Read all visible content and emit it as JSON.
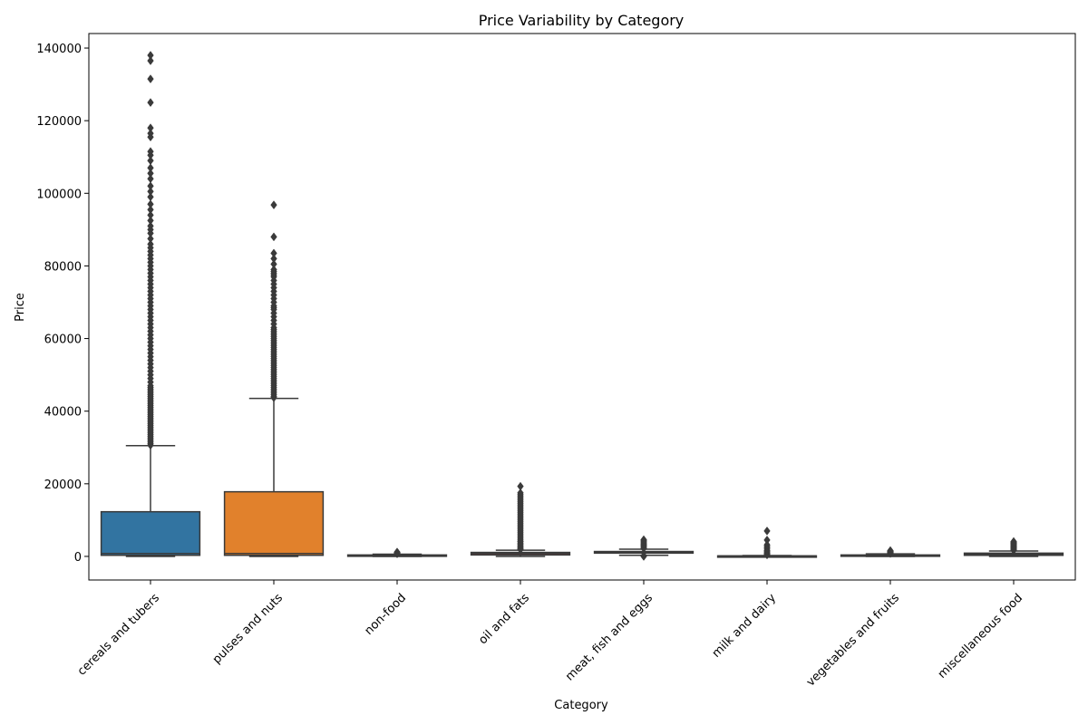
{
  "chart_data": {
    "type": "box",
    "title": "Price Variability by Category",
    "xlabel": "Category",
    "ylabel": "Price",
    "ylim": [
      -6500,
      144000
    ],
    "yticks": [
      0,
      20000,
      40000,
      60000,
      80000,
      100000,
      120000,
      140000
    ],
    "grid": false,
    "legend": "none",
    "box_edge_color": "#3a3a3a",
    "categories": [
      {
        "name": "cereals and tubers",
        "color": "#3274a1",
        "whisker_low": 0,
        "q1": 300,
        "median": 800,
        "q3": 12300,
        "whisker_high": 30500,
        "outliers": [
          30600,
          31000,
          31500,
          32000,
          32500,
          33000,
          33500,
          34000,
          34500,
          35000,
          35500,
          36000,
          36500,
          37000,
          37500,
          38000,
          38500,
          39000,
          39500,
          40000,
          40500,
          41000,
          41500,
          42000,
          42500,
          43000,
          43500,
          44000,
          44500,
          45000,
          45500,
          46000,
          46500,
          47000,
          48000,
          49000,
          50000,
          51000,
          52000,
          53000,
          54000,
          55000,
          56000,
          57000,
          58000,
          59000,
          60000,
          61000,
          62000,
          63000,
          64000,
          65000,
          66000,
          67000,
          68000,
          69000,
          70000,
          71000,
          72000,
          73000,
          74000,
          75000,
          76000,
          77000,
          78000,
          79000,
          80000,
          81000,
          82000,
          83000,
          84000,
          85000,
          86000,
          87500,
          89000,
          90000,
          91000,
          92500,
          94000,
          95500,
          97000,
          99000,
          100500,
          102000,
          104000,
          105500,
          107000,
          109000,
          110500,
          111500,
          115500,
          116500,
          118000,
          125000,
          131500,
          136500,
          138000
        ]
      },
      {
        "name": "pulses and nuts",
        "color": "#e1812c",
        "whisker_low": 0,
        "q1": 300,
        "median": 800,
        "q3": 17800,
        "whisker_high": 43500,
        "outliers": [
          43700,
          44000,
          44500,
          45000,
          45500,
          46000,
          46500,
          47000,
          47500,
          48000,
          48500,
          49000,
          49500,
          50000,
          50500,
          51000,
          51500,
          52000,
          52500,
          53000,
          53500,
          54000,
          54500,
          55000,
          55500,
          56000,
          56500,
          57000,
          57500,
          58000,
          58500,
          59000,
          59500,
          60000,
          60500,
          61000,
          61500,
          62000,
          62500,
          63000,
          64000,
          65000,
          66000,
          67000,
          68000,
          68500,
          69000,
          70000,
          71000,
          72000,
          73000,
          74000,
          75000,
          76000,
          77000,
          77500,
          78000,
          78500,
          79000,
          80500,
          82000,
          83500,
          88000,
          96800
        ]
      },
      {
        "name": "non-food",
        "color": "#3a923a",
        "whisker_low": 0,
        "q1": 150,
        "median": 250,
        "q3": 400,
        "whisker_high": 600,
        "outliers": [
          700,
          800,
          900,
          1000,
          1100,
          1200
        ]
      },
      {
        "name": "oil and fats",
        "color": "#c03d3e",
        "whisker_low": 0,
        "q1": 400,
        "median": 800,
        "q3": 1100,
        "whisker_high": 1700,
        "outliers": [
          1900,
          2200,
          2500,
          2900,
          3300,
          3700,
          4100,
          4500,
          5000,
          5500,
          6000,
          6500,
          7000,
          7500,
          8000,
          8500,
          9000,
          9500,
          10000,
          10500,
          11000,
          11500,
          12000,
          12500,
          13000,
          13500,
          14000,
          14500,
          15000,
          15500,
          16000,
          16500,
          17000,
          17500,
          19300
        ]
      },
      {
        "name": "meat, fish and eggs",
        "color": "#9372b2",
        "whisker_low": 300,
        "q1": 900,
        "median": 1150,
        "q3": 1350,
        "whisker_high": 2000,
        "outliers": [
          0,
          100,
          200,
          2200,
          2500,
          2800,
          3100,
          3400,
          3700,
          4000,
          4300,
          4600
        ]
      },
      {
        "name": "milk and dairy",
        "color": "#845b53",
        "whisker_low": 0,
        "q1": 50,
        "median": 100,
        "q3": 150,
        "whisker_high": 250,
        "outliers": [
          400,
          600,
          800,
          1000,
          1300,
          1600,
          2000,
          2400,
          2800,
          3200,
          4500,
          7000
        ]
      },
      {
        "name": "vegetables and fruits",
        "color": "#d684bd",
        "whisker_low": 0,
        "q1": 100,
        "median": 250,
        "q3": 400,
        "whisker_high": 700,
        "outliers": [
          800,
          900,
          1000,
          1100,
          1200,
          1300,
          1400,
          1500,
          1600
        ]
      },
      {
        "name": "miscellaneous food",
        "color": "#7f7f7f",
        "whisker_low": 0,
        "q1": 300,
        "median": 600,
        "q3": 900,
        "whisker_high": 1500,
        "outliers": [
          1700,
          1900,
          2100,
          2300,
          2500,
          2700,
          2900,
          3100,
          3300,
          3500,
          3700,
          3900,
          4100
        ]
      }
    ]
  }
}
